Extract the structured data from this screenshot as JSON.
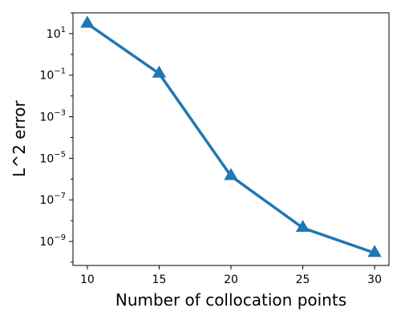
{
  "chart_data": {
    "type": "line",
    "title": "",
    "xlabel": "Number of collocation points",
    "ylabel": "L^2 error",
    "y_scale": "log",
    "grid": false,
    "legend": "none",
    "x": [
      10,
      15,
      20,
      25,
      30
    ],
    "series": [
      {
        "values": [
          30,
          0.12,
          1.4e-06,
          4.5e-09,
          2.8e-10
        ],
        "color": "#1f77b4",
        "marker": "triangle-up"
      }
    ],
    "xlim": [
      9,
      31
    ],
    "ylim": [
      7e-11,
      100
    ],
    "x_ticks": [
      {
        "value": 10,
        "label": "10"
      },
      {
        "value": 15,
        "label": "15"
      },
      {
        "value": 20,
        "label": "20"
      },
      {
        "value": 25,
        "label": "25"
      },
      {
        "value": 30,
        "label": "30"
      }
    ],
    "y_ticks": [
      {
        "value": 10,
        "base": "10",
        "exp": "1"
      },
      {
        "value": 0.1,
        "base": "10",
        "exp": "−1"
      },
      {
        "value": 0.001,
        "base": "10",
        "exp": "−3"
      },
      {
        "value": 1e-05,
        "base": "10",
        "exp": "−5"
      },
      {
        "value": 1e-07,
        "base": "10",
        "exp": "−7"
      },
      {
        "value": 1e-09,
        "base": "10",
        "exp": "−9"
      }
    ]
  }
}
